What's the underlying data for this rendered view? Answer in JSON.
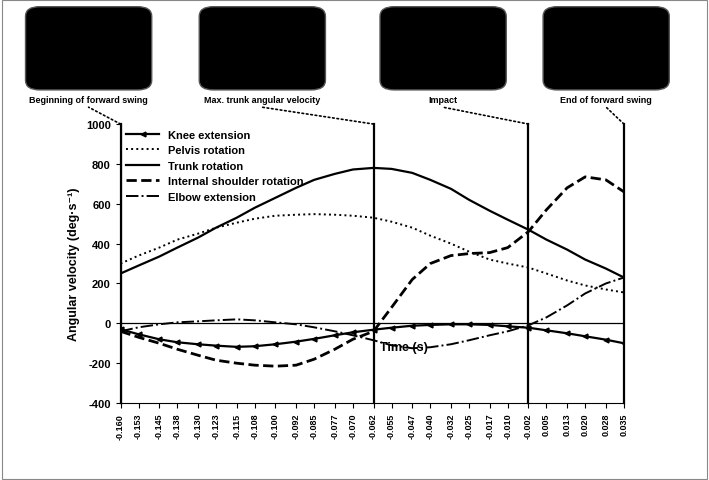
{
  "chart_data": {
    "type": "line",
    "y_label": "Angular velocity (deg·s⁻¹)",
    "x_label": "Time (s)",
    "x": [
      -0.16,
      -0.153,
      -0.145,
      -0.138,
      -0.13,
      -0.123,
      -0.115,
      -0.108,
      -0.1,
      -0.092,
      -0.085,
      -0.077,
      -0.07,
      -0.062,
      -0.055,
      -0.047,
      -0.04,
      -0.032,
      -0.025,
      -0.017,
      -0.01,
      -0.002,
      0.005,
      0.013,
      0.02,
      0.028,
      0.035
    ],
    "series": [
      {
        "name": "Knee extension",
        "color": "#000000",
        "line_style": "solid",
        "marker": "triangle_left",
        "values": [
          -30,
          -55,
          -80,
          -95,
          -105,
          -112,
          -118,
          -115,
          -105,
          -92,
          -78,
          -60,
          -45,
          -32,
          -22,
          -12,
          -8,
          -5,
          -5,
          -8,
          -15,
          -22,
          -35,
          -50,
          -65,
          -82,
          -100
        ]
      },
      {
        "name": "Pelvis rotation",
        "color": "#000000",
        "line_style": "dotted",
        "values": [
          300,
          340,
          380,
          420,
          450,
          480,
          505,
          525,
          540,
          545,
          548,
          545,
          540,
          530,
          510,
          480,
          440,
          400,
          360,
          320,
          300,
          280,
          250,
          215,
          190,
          170,
          155
        ]
      },
      {
        "name": "Trunk rotation",
        "color": "#000000",
        "line_style": "solid",
        "values": [
          250,
          290,
          335,
          380,
          430,
          480,
          530,
          580,
          630,
          680,
          720,
          750,
          772,
          780,
          775,
          755,
          720,
          675,
          620,
          565,
          520,
          470,
          420,
          370,
          320,
          275,
          230
        ]
      },
      {
        "name": "Internal shoulder rotation",
        "color": "#000000",
        "line_style": "dashed",
        "values": [
          -40,
          -70,
          -100,
          -130,
          -160,
          -185,
          -200,
          -210,
          -215,
          -210,
          -180,
          -130,
          -80,
          -40,
          80,
          220,
          300,
          340,
          350,
          355,
          380,
          460,
          570,
          680,
          735,
          720,
          660
        ]
      },
      {
        "name": "Elbow extension",
        "color": "#000000",
        "line_style": "dashdot",
        "values": [
          -40,
          -20,
          -5,
          5,
          10,
          15,
          20,
          15,
          5,
          -5,
          -20,
          -40,
          -60,
          -85,
          -110,
          -125,
          -120,
          -105,
          -85,
          -60,
          -40,
          -10,
          30,
          90,
          150,
          200,
          230
        ]
      }
    ],
    "xlim": [
      -0.16,
      0.035
    ],
    "xticks": [
      {
        "value": -0.16,
        "label": "-0.160"
      },
      {
        "value": -0.153,
        "label": "-0.153"
      },
      {
        "value": -0.145,
        "label": "-0.145"
      },
      {
        "value": -0.138,
        "label": "-0.138"
      },
      {
        "value": -0.13,
        "label": "-0.130"
      },
      {
        "value": -0.123,
        "label": "-0.123"
      },
      {
        "value": -0.115,
        "label": "-0.115"
      },
      {
        "value": -0.108,
        "label": "-0.108"
      },
      {
        "value": -0.1,
        "label": "-0.100"
      },
      {
        "value": -0.092,
        "label": "-0.092"
      },
      {
        "value": -0.085,
        "label": "-0.085"
      },
      {
        "value": -0.077,
        "label": "-0.077"
      },
      {
        "value": -0.07,
        "label": "-0.070"
      },
      {
        "value": -0.062,
        "label": "-0.062"
      },
      {
        "value": -0.055,
        "label": "-0.055"
      },
      {
        "value": -0.047,
        "label": "-0.047"
      },
      {
        "value": -0.04,
        "label": "-0.040"
      },
      {
        "value": -0.032,
        "label": "-0.032"
      },
      {
        "value": -0.025,
        "label": "-0.025"
      },
      {
        "value": -0.017,
        "label": "-0.017"
      },
      {
        "value": -0.01,
        "label": "-0.010"
      },
      {
        "value": -0.002,
        "label": "-0.002"
      },
      {
        "value": 0.005,
        "label": "0.005"
      },
      {
        "value": 0.013,
        "label": "0.013"
      },
      {
        "value": 0.02,
        "label": "0.020"
      },
      {
        "value": 0.028,
        "label": "0.028"
      },
      {
        "value": 0.035,
        "label": "0.035"
      }
    ],
    "ylim": [
      -400,
      1000
    ],
    "yticks": [
      -400,
      -200,
      0,
      200,
      400,
      600,
      800,
      1000
    ],
    "legend": "upper left",
    "annotations": [
      {
        "x": -0.16,
        "label": "Beginning of forward swing"
      },
      {
        "x": -0.062,
        "label": "Max. trunk angular velocity"
      },
      {
        "x": -0.002,
        "label": "Impact"
      },
      {
        "x": 0.035,
        "label": "End of forward swing"
      }
    ]
  }
}
